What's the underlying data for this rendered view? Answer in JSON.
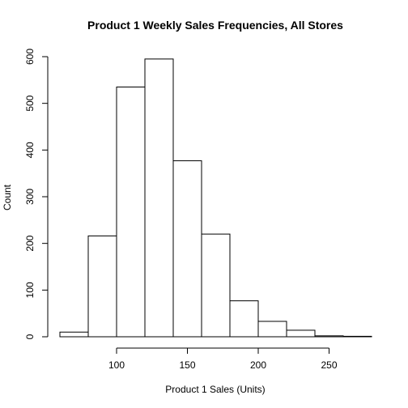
{
  "chart_data": {
    "type": "bar",
    "title": "Product 1 Weekly Sales Frequencies, All Stores",
    "xlabel": "Product 1 Sales (Units)",
    "ylabel": "Count",
    "bins": [
      {
        "start": 60,
        "end": 80,
        "count": 10
      },
      {
        "start": 80,
        "end": 100,
        "count": 216
      },
      {
        "start": 100,
        "end": 120,
        "count": 535
      },
      {
        "start": 120,
        "end": 140,
        "count": 595
      },
      {
        "start": 140,
        "end": 160,
        "count": 377
      },
      {
        "start": 160,
        "end": 180,
        "count": 220
      },
      {
        "start": 180,
        "end": 200,
        "count": 77
      },
      {
        "start": 200,
        "end": 220,
        "count": 33
      },
      {
        "start": 220,
        "end": 240,
        "count": 14
      },
      {
        "start": 240,
        "end": 260,
        "count": 2
      },
      {
        "start": 260,
        "end": 280,
        "count": 1
      }
    ],
    "x_ticks": [
      "100",
      "150",
      "200",
      "250"
    ],
    "y_ticks": [
      "0",
      "100",
      "200",
      "300",
      "400",
      "500",
      "600"
    ],
    "xlim": [
      60,
      280
    ],
    "ylim": [
      0,
      600
    ],
    "grid": false,
    "bar_fill": "#ffffff",
    "bar_stroke": "#000000"
  }
}
